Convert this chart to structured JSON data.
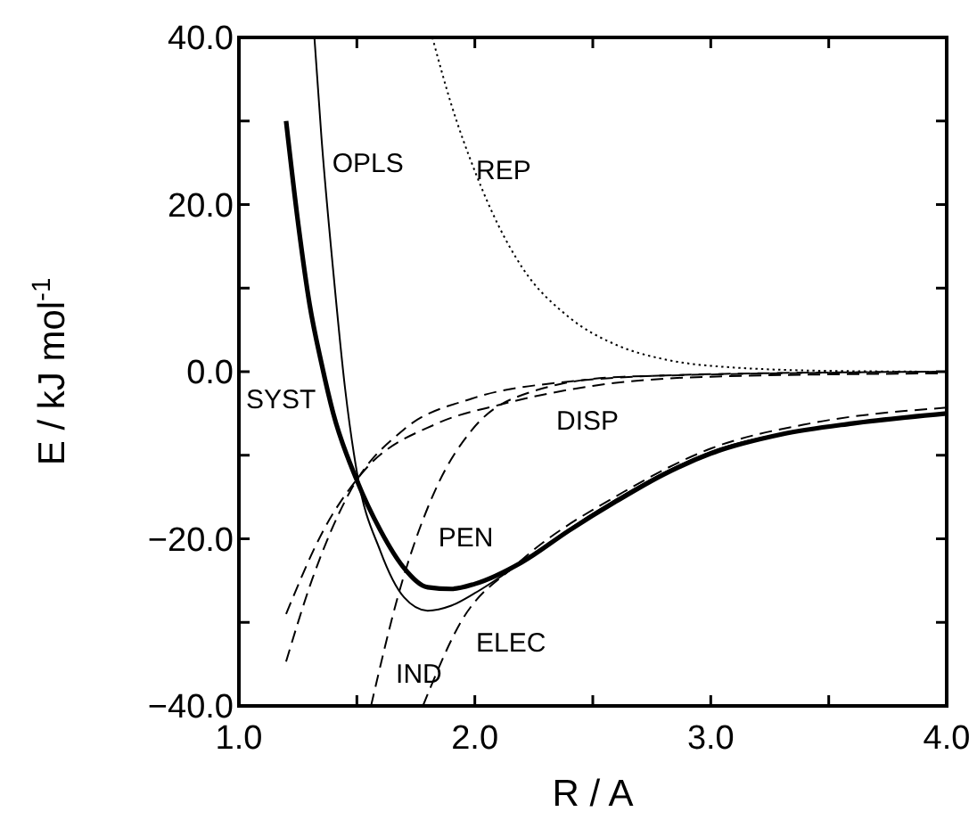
{
  "chart_data": {
    "type": "line",
    "xlabel": "R / A",
    "ylabel": "E / kJ mol$^{-1}$",
    "xlim": [
      1.0,
      4.0
    ],
    "ylim": [
      -40,
      40
    ],
    "xticks": [
      {
        "value": 1.0,
        "label": "1.0"
      },
      {
        "value": 1.5,
        "label": null
      },
      {
        "value": 2.0,
        "label": "2.0"
      },
      {
        "value": 2.5,
        "label": null
      },
      {
        "value": 3.0,
        "label": "3.0"
      },
      {
        "value": 3.5,
        "label": null
      },
      {
        "value": 4.0,
        "label": "4.0"
      }
    ],
    "yticks": [
      {
        "value": -40,
        "label": "−40.0"
      },
      {
        "value": -30,
        "label": null
      },
      {
        "value": -20,
        "label": "−20.0"
      },
      {
        "value": -10,
        "label": null
      },
      {
        "value": 0,
        "label": "0.0"
      },
      {
        "value": 10,
        "label": null
      },
      {
        "value": 20,
        "label": "20.0"
      },
      {
        "value": 30,
        "label": null
      },
      {
        "value": 40,
        "label": "40.0"
      }
    ],
    "grid": false,
    "marker": "none",
    "series": [
      {
        "color": "#000000",
        "line_style": "solid",
        "x": [
          1.2,
          1.25,
          1.3,
          1.35,
          1.4,
          1.5,
          1.6,
          1.7,
          1.8,
          1.9,
          2.0,
          2.2,
          2.4,
          2.6,
          2.8,
          3.0,
          3.3,
          3.6,
          4.0
        ],
        "values": [
          30,
          18,
          8,
          1,
          -5,
          -13,
          -19,
          -23.5,
          -25.8,
          -26,
          -25.4,
          -22.8,
          -19,
          -15.5,
          -12.3,
          -9.8,
          -7.5,
          -6.2,
          -5
        ]
      },
      {
        "color": "#000000",
        "line_style": "solid",
        "x": [
          1.32,
          1.35,
          1.4,
          1.45,
          1.5,
          1.6,
          1.7,
          1.8,
          1.9,
          2.0,
          2.2,
          2.5,
          3.0,
          3.5,
          4.0
        ],
        "values": [
          40,
          28,
          12,
          -2,
          -12,
          -21.5,
          -27,
          -28.6,
          -28,
          -26.5,
          -22.8,
          -17,
          -9.6,
          -6.6,
          -5
        ]
      },
      {
        "color": "#000000",
        "line_style": "dotted",
        "x": [
          1.82,
          1.9,
          2.0,
          2.1,
          2.2,
          2.4,
          2.6,
          2.8,
          3.0,
          3.5,
          4.0
        ],
        "values": [
          40,
          32,
          24,
          17.5,
          12.5,
          6.5,
          3.2,
          1.5,
          0.7,
          0.1,
          0
        ]
      },
      {
        "color": "#000000",
        "line_style": "dashed",
        "x": [
          1.2,
          1.36,
          1.52,
          1.84,
          2.1,
          2.5,
          3.0,
          4.0
        ],
        "values": [
          -29,
          -18.9,
          -12.2,
          -6.2,
          -4,
          -1.7,
          -0.6,
          -0.2
        ]
      },
      {
        "color": "#000000",
        "line_style": "dashed",
        "x": [
          1.2,
          1.31,
          1.47,
          1.7,
          1.99,
          2.36,
          3.0,
          4.0
        ],
        "values": [
          -34.7,
          -24.9,
          -14.4,
          -6.9,
          -3.2,
          -1.3,
          -0.3,
          0
        ]
      },
      {
        "color": "#000000",
        "line_style": "dashed",
        "x": [
          1.56,
          1.68,
          1.84,
          1.99,
          2.23,
          2.63,
          4.0
        ],
        "values": [
          -40,
          -26.3,
          -13.7,
          -6.9,
          -2.5,
          -0.6,
          0
        ]
      },
      {
        "color": "#000000",
        "line_style": "dashed",
        "x": [
          1.78,
          1.94,
          2.18,
          2.63,
          3.0,
          3.42,
          4.0
        ],
        "values": [
          -40,
          -30,
          -23,
          -14.4,
          -9.2,
          -6.2,
          -4.3
        ]
      }
    ],
    "annotations": [
      {
        "text": "OPLS",
        "x": 1.35,
        "y": 28
      },
      {
        "text": "REP",
        "x": 1.96,
        "y": 27.2
      },
      "SYST",
      {
        "text": "DISP",
        "x": 2.3,
        "y": -2.85
      },
      {
        "text": "PEN",
        "x": 1.8,
        "y": -16.85
      },
      {
        "text": "IND",
        "x": 1.62,
        "y": -33.15
      },
      {
        "text": "ELEC",
        "x": 1.96,
        "y": -29.4
      }
    ]
  }
}
